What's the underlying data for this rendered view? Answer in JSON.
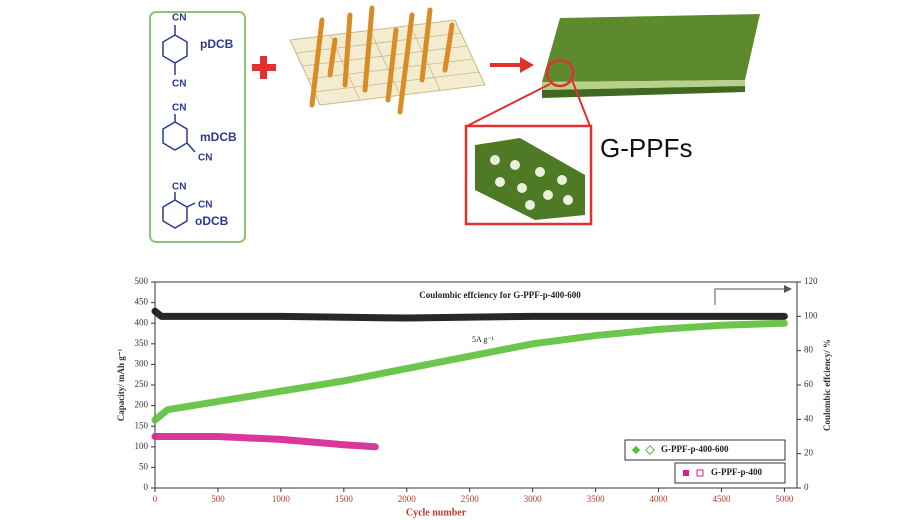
{
  "diagram": {
    "molecules": [
      {
        "name": "pDCB",
        "groups": [
          "CN",
          "CN"
        ]
      },
      {
        "name": "mDCB",
        "groups": [
          "CN",
          "CN"
        ]
      },
      {
        "name": "oDCB",
        "groups": [
          "CN",
          "CN"
        ]
      }
    ],
    "product": "G-PPFs"
  },
  "chart_data": {
    "type": "line",
    "xlabel": "Cycle number",
    "ylabel": "Capacity/ mAh g⁻¹",
    "y2label": "Coulombic effciency/ %",
    "annotations": [
      "Coulombic effciency for G-PPF-p-400-600",
      "5A g⁻¹"
    ],
    "xlim": [
      0,
      5100
    ],
    "xticks": [
      0,
      500,
      1000,
      1500,
      2000,
      2500,
      3000,
      3500,
      4000,
      4500,
      5000
    ],
    "ylim": [
      0,
      500
    ],
    "yticks": [
      0,
      50,
      100,
      150,
      200,
      250,
      300,
      350,
      400,
      450,
      500
    ],
    "y2lim": [
      0,
      120
    ],
    "y2ticks": [
      0,
      20,
      40,
      60,
      80,
      100,
      120
    ],
    "series": [
      {
        "name": "G-PPF-p-400-600",
        "color": "#5cbf3a",
        "x": [
          0,
          100,
          500,
          1000,
          1500,
          2000,
          2500,
          3000,
          3500,
          4000,
          4500,
          5000
        ],
        "values": [
          165,
          190,
          210,
          235,
          260,
          290,
          320,
          350,
          370,
          385,
          395,
          400
        ]
      },
      {
        "name": "G-PPF-p-400",
        "color": "#d6218f",
        "x": [
          0,
          500,
          1000,
          1500,
          1750
        ],
        "values": [
          125,
          125,
          118,
          105,
          100
        ]
      },
      {
        "color": "#111111",
        "axis": "y2",
        "x": [
          0,
          50,
          200,
          1000,
          2000,
          3000,
          4000,
          5000
        ],
        "values": [
          103,
          100,
          100,
          100,
          99,
          100,
          100,
          100
        ]
      }
    ]
  }
}
